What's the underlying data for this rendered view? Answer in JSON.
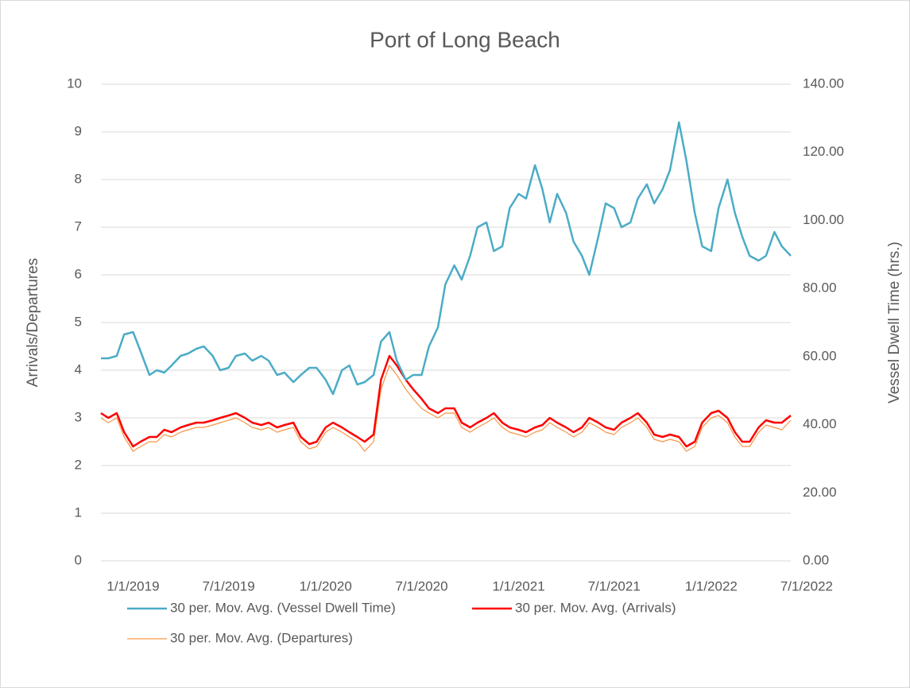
{
  "chart_data": {
    "type": "line",
    "title": "Port of Long Beach",
    "ylabel": "Arrivals/Departures",
    "y2label": "Vessel Dwell Time (hrs.)",
    "x": [
      "11/1/2018",
      "11/15/2018",
      "12/1/2018",
      "12/15/2018",
      "1/1/2019",
      "1/15/2019",
      "2/1/2019",
      "2/15/2019",
      "3/1/2019",
      "3/15/2019",
      "4/1/2019",
      "4/15/2019",
      "5/1/2019",
      "5/15/2019",
      "6/1/2019",
      "6/15/2019",
      "7/1/2019",
      "7/15/2019",
      "8/1/2019",
      "8/15/2019",
      "9/1/2019",
      "9/15/2019",
      "10/1/2019",
      "10/15/2019",
      "11/1/2019",
      "11/15/2019",
      "12/1/2019",
      "12/15/2019",
      "1/1/2020",
      "1/15/2020",
      "2/1/2020",
      "2/15/2020",
      "3/1/2020",
      "3/15/2020",
      "4/1/2020",
      "4/15/2020",
      "5/1/2020",
      "5/15/2020",
      "6/1/2020",
      "6/15/2020",
      "7/1/2020",
      "7/15/2020",
      "8/1/2020",
      "8/15/2020",
      "9/1/2020",
      "9/15/2020",
      "10/1/2020",
      "10/15/2020",
      "11/1/2020",
      "11/15/2020",
      "12/1/2020",
      "12/15/2020",
      "1/1/2021",
      "1/15/2021",
      "2/1/2021",
      "2/15/2021",
      "3/1/2021",
      "3/15/2021",
      "4/1/2021",
      "4/15/2021",
      "5/1/2021",
      "5/15/2021",
      "6/1/2021",
      "6/15/2021",
      "7/1/2021",
      "7/15/2021",
      "8/1/2021",
      "8/15/2021",
      "9/1/2021",
      "9/15/2021",
      "10/1/2021",
      "10/15/2021",
      "11/1/2021",
      "11/15/2021",
      "12/1/2021",
      "12/15/2021",
      "1/1/2022",
      "1/15/2022",
      "2/1/2022",
      "2/15/2022",
      "3/1/2022",
      "3/15/2022",
      "4/1/2022",
      "4/15/2022",
      "5/1/2022",
      "5/15/2022",
      "6/1/2022"
    ],
    "series": [
      {
        "name": "30 per. Mov. Avg. (Vessel Dwell Time)",
        "color": "#4bacc6",
        "axis": "y2",
        "width": 2.5,
        "values": [
          59.5,
          59.5,
          60.2,
          66.5,
          67.2,
          61.6,
          54.6,
          56,
          55.3,
          57.4,
          60.2,
          60.9,
          62.3,
          63,
          60.2,
          56,
          56.7,
          60.2,
          60.9,
          58.8,
          60.2,
          58.8,
          54.6,
          55.3,
          52.5,
          54.6,
          56.7,
          56.7,
          53.2,
          49,
          56,
          57.4,
          51.8,
          52.5,
          54.6,
          64.4,
          67.2,
          58.8,
          53.2,
          54.6,
          54.6,
          63,
          68.6,
          81.2,
          86.8,
          82.6,
          89.6,
          98,
          99.4,
          91,
          92.4,
          103.6,
          107.8,
          106.4,
          116.2,
          109.2,
          99.4,
          107.8,
          102.2,
          93.8,
          89.6,
          84,
          95.2,
          105,
          103.6,
          98,
          99.4,
          106.4,
          110.6,
          105,
          109.2,
          114.8,
          128.8,
          117.6,
          102.2,
          92.4,
          91,
          103.6,
          112,
          102.2,
          95.2,
          89.6,
          88.2,
          89.6,
          96.6,
          92.4,
          89.6
        ]
      },
      {
        "name": "30 per. Mov. Avg. (Arrivals)",
        "color": "#ff0000",
        "width": 2.5,
        "values": [
          3.1,
          3.0,
          3.1,
          2.7,
          2.4,
          2.5,
          2.6,
          2.6,
          2.75,
          2.7,
          2.8,
          2.85,
          2.9,
          2.9,
          2.95,
          3.0,
          3.05,
          3.1,
          3.0,
          2.9,
          2.85,
          2.9,
          2.8,
          2.85,
          2.9,
          2.6,
          2.45,
          2.5,
          2.8,
          2.9,
          2.8,
          2.7,
          2.6,
          2.5,
          2.65,
          3.8,
          4.3,
          4.1,
          3.8,
          3.6,
          3.4,
          3.2,
          3.1,
          3.2,
          3.2,
          2.9,
          2.8,
          2.9,
          3.0,
          3.1,
          2.9,
          2.8,
          2.75,
          2.7,
          2.8,
          2.85,
          3.0,
          2.9,
          2.8,
          2.7,
          2.8,
          3.0,
          2.9,
          2.8,
          2.75,
          2.9,
          3.0,
          3.1,
          2.9,
          2.65,
          2.6,
          2.65,
          2.6,
          2.4,
          2.5,
          2.9,
          3.1,
          3.15,
          3.0,
          2.7,
          2.5,
          2.5,
          2.8,
          2.95,
          2.9,
          2.9,
          3.05
        ]
      },
      {
        "name": "30 per. Mov. Avg. (Departures)",
        "color": "#f79646",
        "width": 1.2,
        "values": [
          3.0,
          2.9,
          3.0,
          2.6,
          2.3,
          2.4,
          2.5,
          2.5,
          2.65,
          2.6,
          2.7,
          2.75,
          2.8,
          2.8,
          2.85,
          2.9,
          2.95,
          3.0,
          2.9,
          2.8,
          2.75,
          2.8,
          2.7,
          2.75,
          2.8,
          2.5,
          2.35,
          2.4,
          2.7,
          2.8,
          2.7,
          2.6,
          2.5,
          2.3,
          2.5,
          3.6,
          4.1,
          3.9,
          3.6,
          3.4,
          3.2,
          3.1,
          3.0,
          3.1,
          3.1,
          2.8,
          2.7,
          2.8,
          2.9,
          3.0,
          2.8,
          2.7,
          2.65,
          2.6,
          2.7,
          2.75,
          2.9,
          2.8,
          2.7,
          2.6,
          2.7,
          2.9,
          2.8,
          2.7,
          2.65,
          2.8,
          2.9,
          3.0,
          2.8,
          2.55,
          2.5,
          2.55,
          2.5,
          2.3,
          2.4,
          2.8,
          3.0,
          3.05,
          2.9,
          2.6,
          2.4,
          2.4,
          2.7,
          2.85,
          2.8,
          2.75,
          2.95
        ]
      }
    ],
    "xlim": [
      "11/1/2018",
      "6/1/2022"
    ],
    "xticks": [
      "1/1/2019",
      "7/1/2019",
      "1/1/2020",
      "7/1/2020",
      "1/1/2021",
      "7/1/2021",
      "1/1/2022",
      "7/1/2022"
    ],
    "ylim": [
      0,
      10
    ],
    "yticks": [
      0,
      1,
      2,
      3,
      4,
      5,
      6,
      7,
      8,
      9,
      10
    ],
    "y2lim": [
      0,
      140
    ],
    "y2ticks": [
      {
        "value": 0,
        "label": "0.00"
      },
      {
        "value": 20,
        "label": "20.00"
      },
      {
        "value": 40,
        "label": "40.00"
      },
      {
        "value": 60,
        "label": "60.00"
      },
      {
        "value": 80,
        "label": "80.00"
      },
      {
        "value": 100,
        "label": "100.00"
      },
      {
        "value": 120,
        "label": "120.00"
      },
      {
        "value": 140,
        "label": "140.00"
      }
    ],
    "grid": true,
    "legend": "bottom"
  }
}
